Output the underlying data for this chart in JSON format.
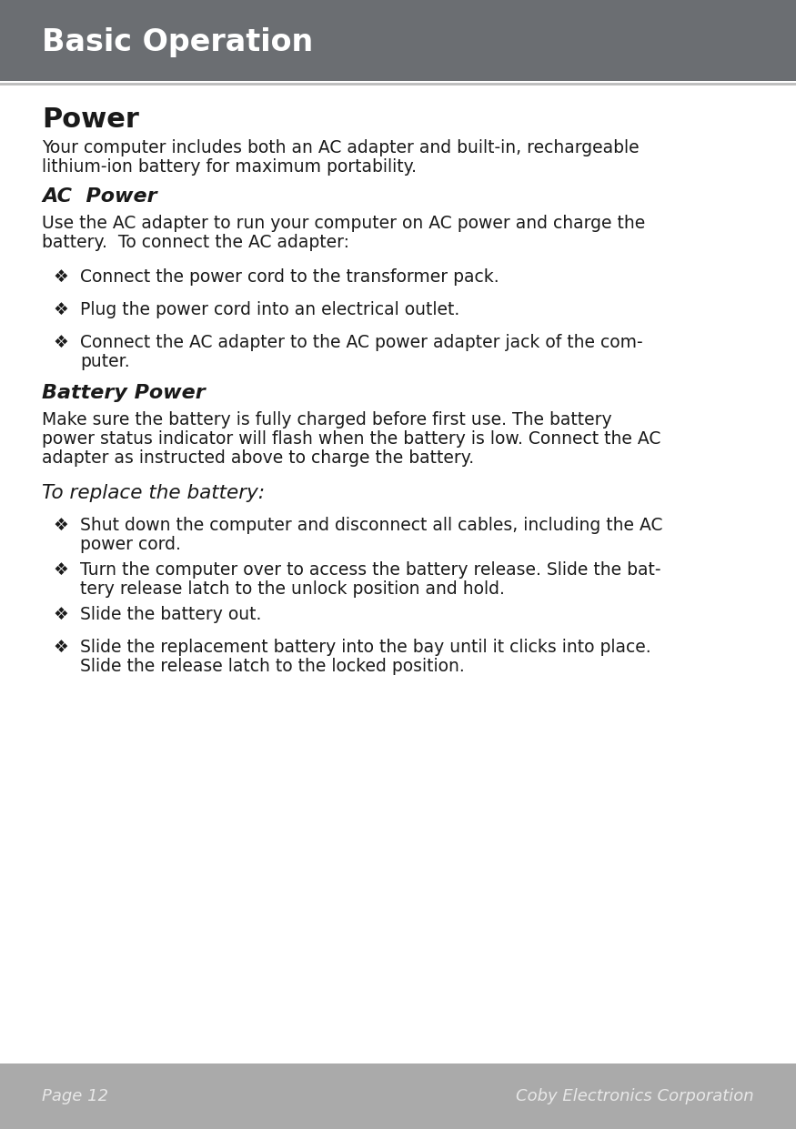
{
  "header_bg_color": "#6b6e72",
  "header_text": "Basic Operation",
  "header_text_color": "#ffffff",
  "page_bg_color": "#ffffff",
  "footer_bg_color": "#aaaaaa",
  "footer_text_left": "Page 12",
  "footer_text_right": "Coby Electronics Corporation",
  "footer_text_color": "#e8e8e8",
  "body_text_color": "#1a1a1a",
  "divider_color": "#bbbbbb",
  "section_title_1": "Power",
  "section_para_1_line1": "Your computer includes both an AC adapter and built-in, rechargeable",
  "section_para_1_line2": "lithium-ion battery for maximum portability.",
  "section_title_2": "AC  Power",
  "section_para_2_line1": "Use the AC adapter to run your computer on AC power and charge the",
  "section_para_2_line2": "battery.  To connect the AC adapter:",
  "ac_bullets": [
    [
      "Connect the power cord to the transformer pack.",
      ""
    ],
    [
      "Plug the power cord into an electrical outlet.",
      ""
    ],
    [
      "Connect the AC adapter to the AC power adapter jack of the com-",
      "puter."
    ]
  ],
  "section_title_3": "Battery Power",
  "section_para_3_line1": "Make sure the battery is fully charged before first use. The battery",
  "section_para_3_line2": "power status indicator will flash when the battery is low. Connect the AC",
  "section_para_3_line3": "adapter as instructed above to charge the battery.",
  "section_italic_title": "To replace the battery:",
  "battery_bullets": [
    [
      "Shut down the computer and disconnect all cables, including the AC",
      "power cord."
    ],
    [
      "Turn the computer over to access the battery release. Slide the bat-",
      "tery release latch to the unlock position and hold."
    ],
    [
      "Slide the battery out.",
      ""
    ],
    [
      "Slide the replacement battery into the bay until it clicks into place.",
      "Slide the release latch to the locked position."
    ]
  ],
  "bullet_symbol": "❖"
}
